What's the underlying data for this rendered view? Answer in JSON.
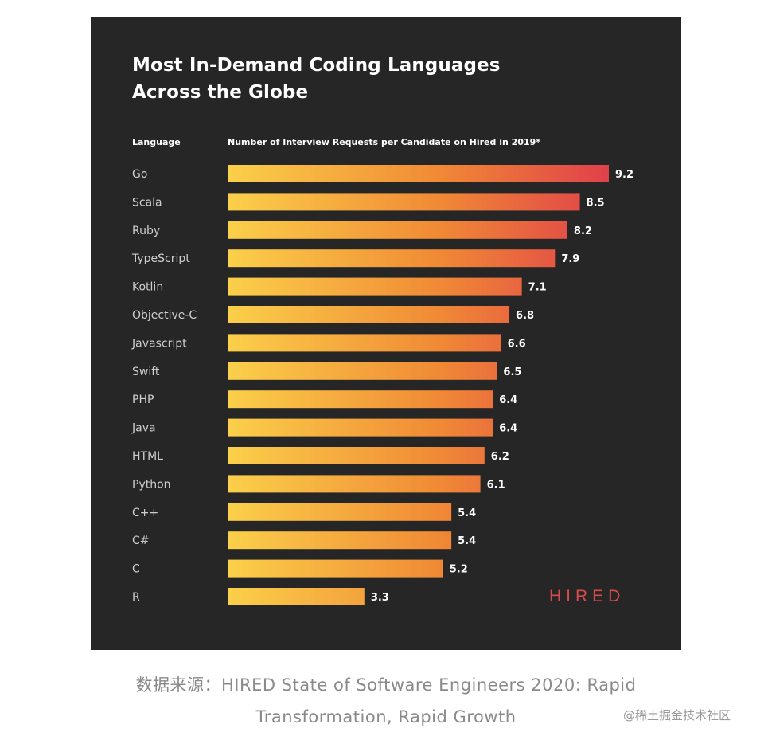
{
  "title_line1": "Most In-Demand Coding Languages",
  "title_line2": "Across the Globe",
  "column_header_language": "Language",
  "column_header_metric": "Number of Interview Requests per Candidate on Hired in 2019*",
  "brand": "HIRED",
  "caption_line1": "数据来源：HIRED State of Software Engineers 2020: Rapid",
  "caption_line2": "Transformation, Rapid Growth",
  "watermark": "@稀土掘金技术社区",
  "colors": {
    "background": "#262626",
    "bar_start": "#fbd04a",
    "bar_mid": "#f08a35",
    "bar_end": "#e0404a",
    "brand": "#d94a4a"
  },
  "chart_data": {
    "type": "bar",
    "orientation": "horizontal",
    "title": "Most In-Demand Coding Languages Across the Globe",
    "xlabel": "Number of Interview Requests per Candidate on Hired in 2019*",
    "ylabel": "Language",
    "categories": [
      "Go",
      "Scala",
      "Ruby",
      "TypeScript",
      "Kotlin",
      "Objective-C",
      "Javascript",
      "Swift",
      "PHP",
      "Java",
      "HTML",
      "Python",
      "C++",
      "C#",
      "C",
      "R"
    ],
    "values": [
      9.2,
      8.5,
      8.2,
      7.9,
      7.1,
      6.8,
      6.6,
      6.5,
      6.4,
      6.4,
      6.2,
      6.1,
      5.4,
      5.4,
      5.2,
      3.3
    ],
    "value_labels": [
      "9.2",
      "8.5",
      "8.2",
      "7.9",
      "7.1",
      "6.8",
      "6.6",
      "6.5",
      "6.4",
      "6.4",
      "6.2",
      "6.1",
      "5.4",
      "5.4",
      "5.2",
      "3.3"
    ],
    "xlim": [
      0,
      9.2
    ],
    "grid": false
  }
}
